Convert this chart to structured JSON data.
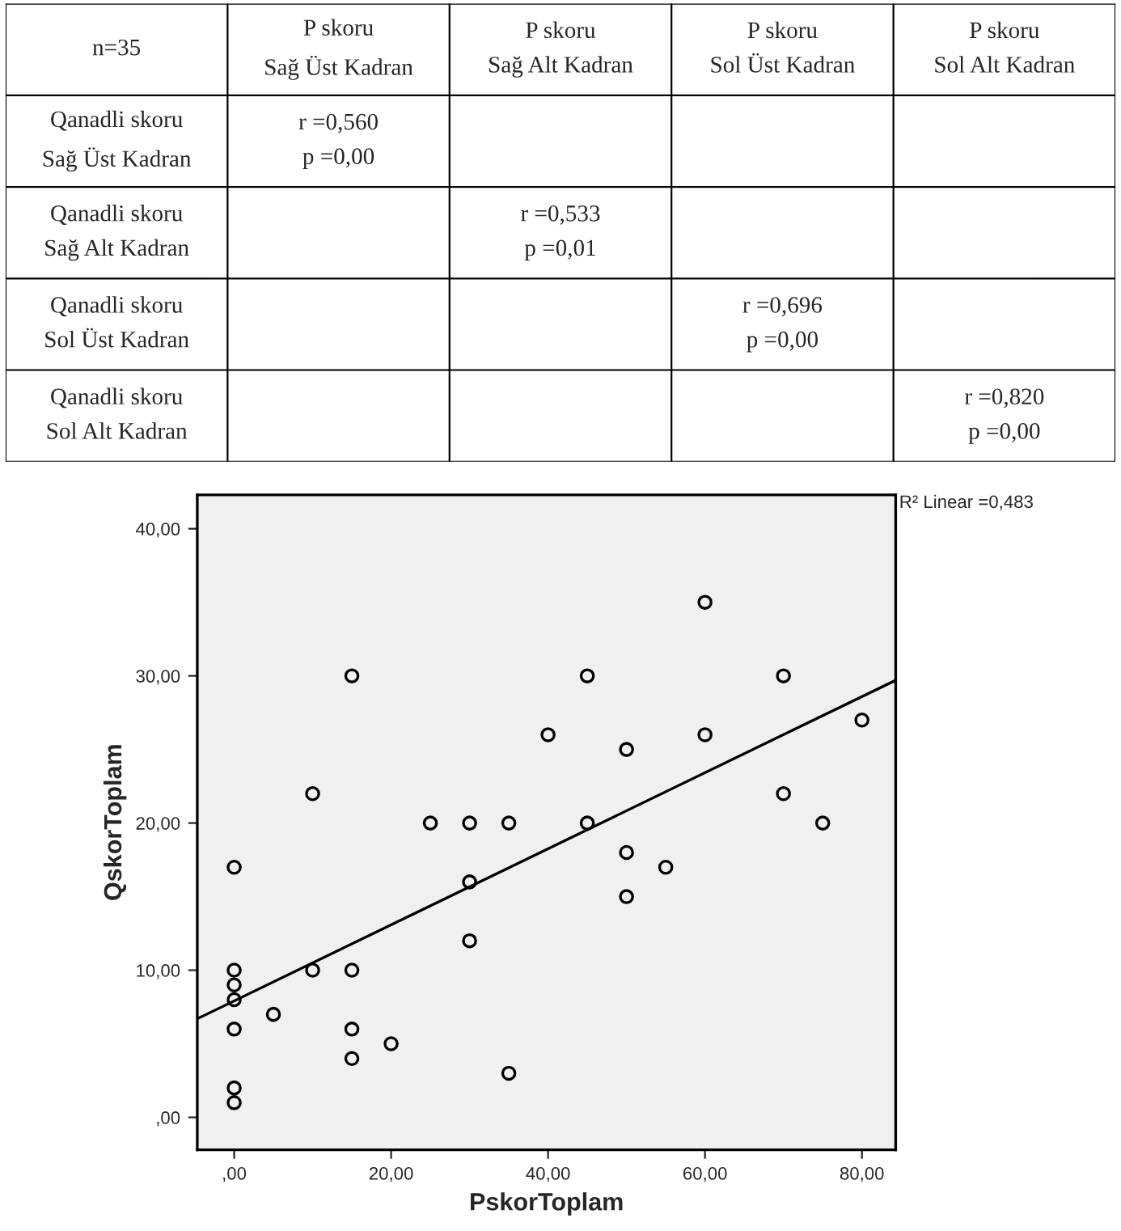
{
  "chart_data": [
    {
      "type": "other",
      "categories": [
        "n=35",
        "P skoru\nSağ Üst Kadran",
        "P skoru\nSağ Alt Kadran",
        "P skoru\nSol Üst Kadran",
        "P skoru\nSol Alt Kadran"
      ],
      "y_categories": [
        "Qanadli skoru\nSağ Üst Kadran",
        "Qanadli skoru\nSağ Alt Kadran",
        "Qanadli skoru\nSol Üst Kadran",
        "Qanadli skoru\nSol Alt Kadran"
      ],
      "cell_labels": [
        [
          "r =0,560\np =0,00",
          null,
          null,
          null
        ],
        [
          null,
          "r =0,533\np =0,01",
          null,
          null
        ],
        [
          null,
          null,
          "r =0,696\np =0,00",
          null
        ],
        [
          null,
          null,
          null,
          "r =0,820\np =0,00"
        ]
      ]
    },
    {
      "type": "scatter",
      "xlabel": "PskorToplam",
      "ylabel": "QskorToplam",
      "series": [
        {
          "type": "scatter",
          "color": "#000000",
          "marker": "circle",
          "x": [
            0,
            0,
            0,
            0,
            0,
            0,
            0,
            5,
            10,
            10,
            15,
            15,
            15,
            15,
            20,
            25,
            30,
            30,
            30,
            35,
            35,
            40,
            45,
            45,
            50,
            50,
            50,
            55,
            60,
            60,
            70,
            70,
            75,
            80
          ],
          "values": [
            17,
            10,
            9,
            8,
            6,
            2,
            1,
            7,
            22,
            10,
            30,
            10,
            6,
            4,
            5,
            20,
            20,
            16,
            12,
            20,
            3,
            26,
            30,
            20,
            25,
            18,
            15,
            17,
            35,
            26,
            30,
            22,
            20,
            27
          ]
        },
        {
          "type": "line",
          "color": "#000000",
          "x": [
            -4.7,
            84.3
          ],
          "values": [
            6.7,
            29.7
          ]
        }
      ],
      "xlim": [
        -4.7,
        84.3
      ],
      "ylim": [
        -2.2,
        42.3
      ],
      "xticks": [
        {
          "value": 0,
          "label": ",00"
        },
        {
          "value": 20,
          "label": "20,00"
        },
        {
          "value": 40,
          "label": "40,00"
        },
        {
          "value": 60,
          "label": "60,00"
        },
        {
          "value": 80,
          "label": "80,00"
        }
      ],
      "yticks": [
        {
          "value": 0,
          "label": ",00"
        },
        {
          "value": 10,
          "label": "10,00"
        },
        {
          "value": 20,
          "label": "20,00"
        },
        {
          "value": 30,
          "label": "30,00"
        },
        {
          "value": 40,
          "label": "40,00"
        }
      ],
      "annotations": [
        "R² Linear =0,483"
      ],
      "grid": false,
      "legend": false
    }
  ]
}
